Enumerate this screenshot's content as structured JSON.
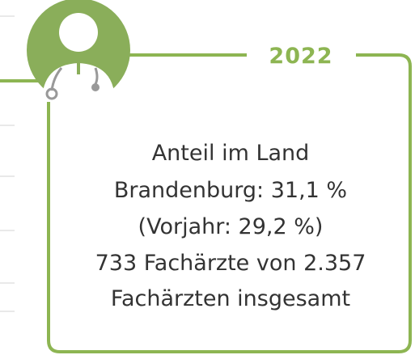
{
  "badge": "2022",
  "text": [
    "Anteil im Land",
    "Brandenburg: 31,1 %",
    "(Vorjahr: 29,2 %)",
    "733 Fachärzte von 2.357",
    "Fachärzten insgesamt"
  ]
}
